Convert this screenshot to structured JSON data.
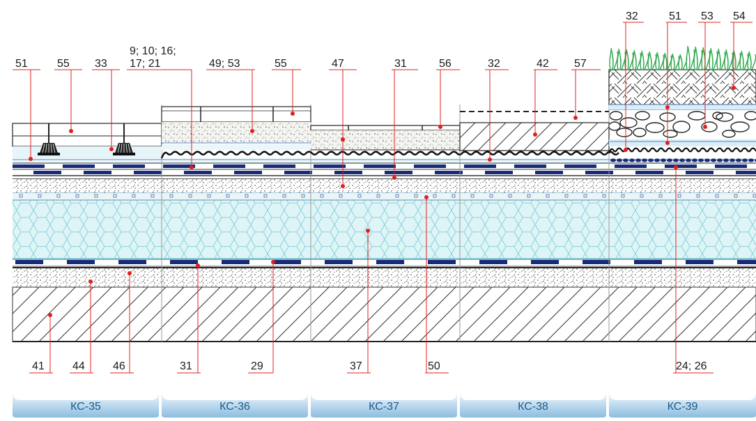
{
  "callouts_top": [
    {
      "id": "t51a",
      "text": "51"
    },
    {
      "id": "t55a",
      "text": "55"
    },
    {
      "id": "t33",
      "text": "33"
    },
    {
      "id": "t9",
      "text": "9; 10; 16;"
    },
    {
      "id": "t17",
      "text": "17; 21"
    },
    {
      "id": "t4953",
      "text": "49; 53"
    },
    {
      "id": "t55b",
      "text": "55"
    },
    {
      "id": "t47",
      "text": "47"
    },
    {
      "id": "t31a",
      "text": "31"
    },
    {
      "id": "t56",
      "text": "56"
    },
    {
      "id": "t32a",
      "text": "32"
    },
    {
      "id": "t42",
      "text": "42"
    },
    {
      "id": "t57",
      "text": "57"
    },
    {
      "id": "t32b",
      "text": "32"
    },
    {
      "id": "t51b",
      "text": "51"
    },
    {
      "id": "t53",
      "text": "53"
    },
    {
      "id": "t54",
      "text": "54"
    }
  ],
  "callouts_bottom": [
    {
      "id": "b41",
      "text": "41"
    },
    {
      "id": "b44",
      "text": "44"
    },
    {
      "id": "b46",
      "text": "46"
    },
    {
      "id": "b31",
      "text": "31"
    },
    {
      "id": "b29",
      "text": "29"
    },
    {
      "id": "b37",
      "text": "37"
    },
    {
      "id": "b50",
      "text": "50"
    },
    {
      "id": "b2426",
      "text": "24; 26"
    }
  ],
  "tabs": [
    "КС-35",
    "КС-36",
    "КС-37",
    "КС-38",
    "КС-39"
  ],
  "colors": {
    "insulation": "#dff4f6",
    "insulation_line": "#7fd3e0",
    "membrane_dark": "#1a2a7a",
    "tab_fill": "#a7cde8",
    "tab_text": "#1a5a8a",
    "leader": "#e02020",
    "grass": "#2aa84a"
  },
  "icons": [
    "pedestal-support-icon",
    "grass-icon"
  ]
}
